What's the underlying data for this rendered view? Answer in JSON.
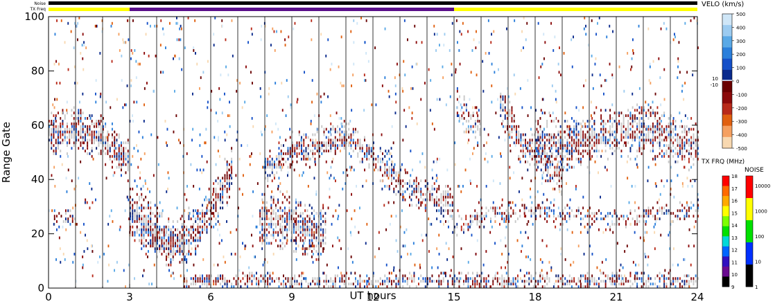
{
  "chart_data": {
    "type": "heatmap",
    "title": "",
    "xlabel": "UT hours",
    "ylabel": "Range Gate",
    "xlim": [
      0,
      24
    ],
    "ylim": [
      0,
      100
    ],
    "x_ticks": [
      0,
      3,
      6,
      9,
      12,
      15,
      18,
      21,
      24
    ],
    "y_ticks": [
      0,
      20,
      40,
      60,
      80,
      100
    ],
    "top_bars": {
      "noise_label": "Noise",
      "txfreq_label": "TX Freq",
      "noise_color": "#000000",
      "txfreq_segments": [
        {
          "start": 0,
          "end": 3,
          "color": "#ffff00"
        },
        {
          "start": 3,
          "end": 15,
          "color": "#5a0f8a"
        },
        {
          "start": 15,
          "end": 24,
          "color": "#ffff00"
        }
      ]
    },
    "velocity_scale": {
      "title": "VELO (km/s)",
      "ticks": [
        "500",
        "400",
        "300",
        "200",
        "100",
        "0",
        "-100",
        "-200",
        "-300",
        "-400",
        "-500"
      ],
      "side_labels": [
        "10",
        "-10"
      ],
      "colors": [
        "#cfe6f7",
        "#9ccbf0",
        "#5aa9e6",
        "#2b7fdb",
        "#1550c8",
        "#0a2a8c",
        "#6a0000",
        "#8b0a0a",
        "#b82a1a",
        "#e06010",
        "#f5a060",
        "#f8d8b0"
      ]
    },
    "txfreq_scale": {
      "title": "TX FRQ (MHz)",
      "ticks": [
        "18",
        "17",
        "16",
        "15",
        "14",
        "13",
        "12",
        "11",
        "10",
        "9"
      ],
      "colors": [
        "#ff0000",
        "#ff6a00",
        "#ffaa00",
        "#ffff00",
        "#7cff00",
        "#00e000",
        "#00d8d8",
        "#0066ff",
        "#3010c0",
        "#6a0a90",
        "#000000"
      ]
    },
    "noise_scale": {
      "title": "NOISE",
      "ticks": [
        "10000",
        "1000",
        "100",
        "10",
        "1"
      ],
      "colors": [
        "#ff0000",
        "#ffff00",
        "#00e000",
        "#0030ff",
        "#000000"
      ]
    },
    "bands": [
      {
        "name": "",
        "points": [
          [
            0,
            56
          ],
          [
            1,
            58
          ],
          [
            2,
            54
          ],
          [
            3,
            46
          ]
        ],
        "width": 8,
        "density": 0.9
      },
      {
        "name": "",
        "points": [
          [
            0.2,
            25
          ],
          [
            1,
            26
          ]
        ],
        "width": 3,
        "density": 0.5
      },
      {
        "name": "",
        "points": [
          [
            3,
            28
          ],
          [
            4,
            20
          ],
          [
            4.6,
            14
          ],
          [
            5.5,
            22
          ],
          [
            6.3,
            34
          ],
          [
            6.8,
            44
          ]
        ],
        "width": 9,
        "density": 0.85
      },
      {
        "name": "",
        "points": [
          [
            3,
            22
          ],
          [
            4,
            18
          ],
          [
            5,
            16
          ]
        ],
        "width": 6,
        "density": 0.6
      },
      {
        "name": "",
        "points": [
          [
            7.8,
            25
          ],
          [
            9,
            24
          ],
          [
            9.8,
            20
          ],
          [
            10.3,
            20
          ]
        ],
        "width": 10,
        "density": 0.85
      },
      {
        "name": "",
        "points": [
          [
            8,
            43
          ],
          [
            9,
            50
          ],
          [
            10,
            52
          ],
          [
            11,
            55
          ],
          [
            12,
            48
          ],
          [
            13,
            38
          ],
          [
            14,
            33
          ],
          [
            15,
            30
          ]
        ],
        "width": 6,
        "density": 0.8
      },
      {
        "name": "",
        "points": [
          [
            15,
            22
          ],
          [
            16,
            26
          ],
          [
            18,
            28
          ],
          [
            20,
            25
          ],
          [
            22,
            26
          ],
          [
            24,
            28
          ]
        ],
        "width": 4,
        "density": 0.55
      },
      {
        "name": "",
        "points": [
          [
            15.1,
            66
          ],
          [
            16,
            56
          ]
        ],
        "width": 7,
        "density": 0.7
      },
      {
        "name": "",
        "points": [
          [
            16.7,
            68
          ],
          [
            17.5,
            52
          ],
          [
            18.4,
            46
          ],
          [
            19,
            40
          ]
        ],
        "width": 7,
        "density": 0.8
      },
      {
        "name": "",
        "points": [
          [
            18,
            56
          ],
          [
            19,
            52
          ],
          [
            20,
            54
          ],
          [
            21,
            56
          ],
          [
            22,
            58
          ],
          [
            23,
            54
          ],
          [
            24,
            52
          ]
        ],
        "width": 9,
        "density": 0.8
      },
      {
        "name": "",
        "points": [
          [
            5,
            2
          ],
          [
            24,
            2
          ]
        ],
        "width": 3,
        "density": 0.7
      }
    ]
  }
}
